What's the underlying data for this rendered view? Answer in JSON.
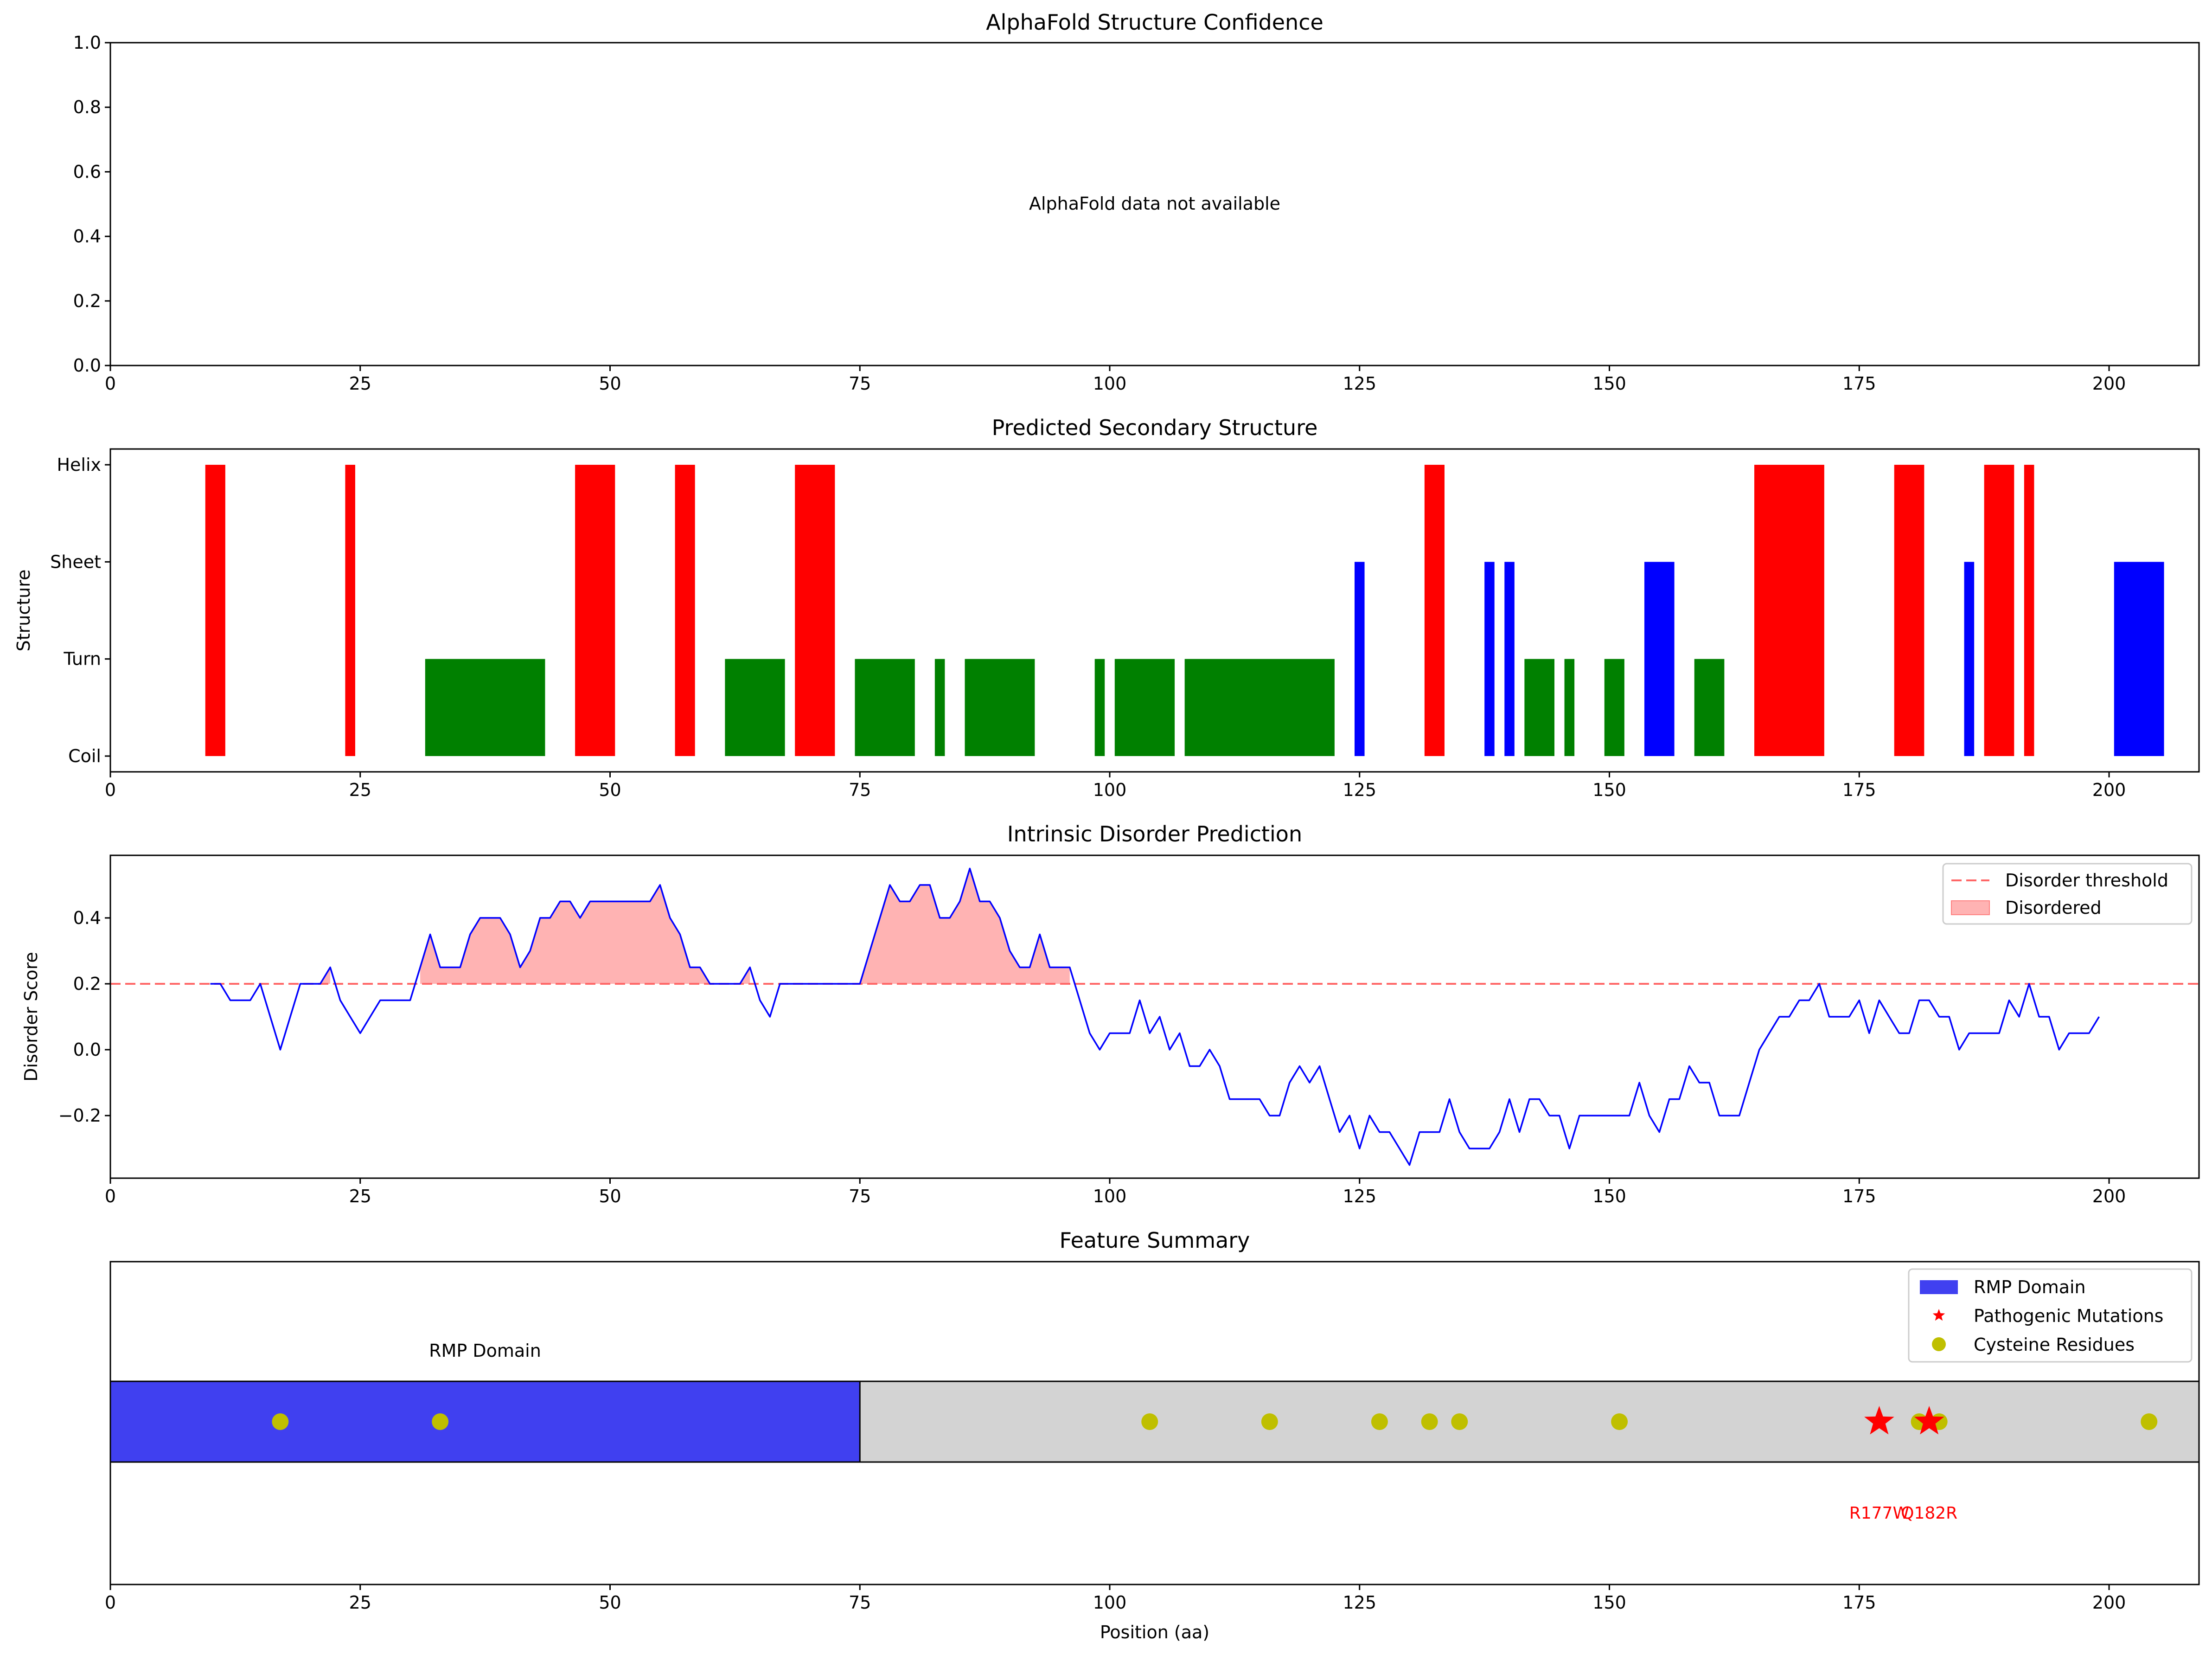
{
  "chart_data": [
    {
      "type": "line",
      "title": "AlphaFold Structure Confidence",
      "xlabel": "",
      "ylabel": "",
      "xlim": [
        0,
        209
      ],
      "ylim": [
        0.0,
        1.0
      ],
      "x_ticks": [
        "0",
        "25",
        "50",
        "75",
        "100",
        "125",
        "150",
        "175",
        "200"
      ],
      "y_ticks": [
        "0.0",
        "0.2",
        "0.4",
        "0.6",
        "0.8",
        "1.0"
      ],
      "message": "AlphaFold data not available",
      "series": []
    },
    {
      "type": "bar",
      "title": "Predicted Secondary Structure",
      "xlabel": "",
      "ylabel": "Structure",
      "xlim": [
        0,
        209
      ],
      "x_ticks": [
        "0",
        "25",
        "50",
        "75",
        "100",
        "125",
        "150",
        "175",
        "200"
      ],
      "levels": [
        "Coil",
        "Turn",
        "Sheet",
        "Helix"
      ],
      "colors": {
        "Helix": "#ff0000",
        "Sheet": "#0000ff",
        "Turn": "#008000"
      },
      "segments": [
        {
          "type": "Helix",
          "start": 9.5,
          "end": 11.5
        },
        {
          "type": "Helix",
          "start": 23.5,
          "end": 24.5
        },
        {
          "type": "Turn",
          "start": 31.5,
          "end": 43.5
        },
        {
          "type": "Helix",
          "start": 46.5,
          "end": 50.5
        },
        {
          "type": "Helix",
          "start": 56.5,
          "end": 58.5
        },
        {
          "type": "Turn",
          "start": 61.5,
          "end": 67.5
        },
        {
          "type": "Helix",
          "start": 68.5,
          "end": 72.5
        },
        {
          "type": "Turn",
          "start": 74.5,
          "end": 80.5
        },
        {
          "type": "Turn",
          "start": 82.5,
          "end": 83.5
        },
        {
          "type": "Turn",
          "start": 85.5,
          "end": 92.5
        },
        {
          "type": "Turn",
          "start": 98.5,
          "end": 99.5
        },
        {
          "type": "Turn",
          "start": 100.5,
          "end": 106.5
        },
        {
          "type": "Turn",
          "start": 107.5,
          "end": 122.5
        },
        {
          "type": "Sheet",
          "start": 124.5,
          "end": 125.5
        },
        {
          "type": "Helix",
          "start": 131.5,
          "end": 133.5
        },
        {
          "type": "Sheet",
          "start": 137.5,
          "end": 138.5
        },
        {
          "type": "Sheet",
          "start": 139.5,
          "end": 140.5
        },
        {
          "type": "Turn",
          "start": 141.5,
          "end": 144.5
        },
        {
          "type": "Turn",
          "start": 145.5,
          "end": 146.5
        },
        {
          "type": "Turn",
          "start": 149.5,
          "end": 151.5
        },
        {
          "type": "Sheet",
          "start": 153.5,
          "end": 156.5
        },
        {
          "type": "Turn",
          "start": 158.5,
          "end": 161.5
        },
        {
          "type": "Helix",
          "start": 164.5,
          "end": 171.5
        },
        {
          "type": "Helix",
          "start": 178.5,
          "end": 181.5
        },
        {
          "type": "Sheet",
          "start": 185.5,
          "end": 186.5
        },
        {
          "type": "Helix",
          "start": 187.5,
          "end": 190.5
        },
        {
          "type": "Helix",
          "start": 191.5,
          "end": 192.5
        },
        {
          "type": "Sheet",
          "start": 200.5,
          "end": 205.5
        }
      ]
    },
    {
      "type": "line",
      "title": "Intrinsic Disorder Prediction",
      "xlabel": "",
      "ylabel": "Disorder Score",
      "xlim": [
        0,
        209
      ],
      "ylim": [
        -0.39,
        0.59
      ],
      "x_ticks": [
        "0",
        "25",
        "50",
        "75",
        "100",
        "125",
        "150",
        "175",
        "200"
      ],
      "y_ticks": [
        "−0.2",
        "0.0",
        "0.2",
        "0.4"
      ],
      "threshold": 0.2,
      "legend": {
        "position": "top-right",
        "entries": [
          "Disorder threshold",
          "Disordered"
        ]
      },
      "line_color": "#0000ff",
      "fill_color": "#ffb3b3",
      "threshold_color": "#ff6666",
      "x_start": 10,
      "values": [
        0.2,
        0.2,
        0.15,
        0.15,
        0.15,
        0.2,
        0.1,
        0.0,
        0.1,
        0.2,
        0.2,
        0.2,
        0.25,
        0.15,
        0.1,
        0.05,
        0.1,
        0.15,
        0.15,
        0.15,
        0.15,
        0.25,
        0.35,
        0.25,
        0.25,
        0.25,
        0.35,
        0.4,
        0.4,
        0.4,
        0.35,
        0.25,
        0.3,
        0.4,
        0.4,
        0.45,
        0.45,
        0.4,
        0.45,
        0.45,
        0.45,
        0.45,
        0.45,
        0.45,
        0.45,
        0.5,
        0.4,
        0.35,
        0.25,
        0.25,
        0.2,
        0.2,
        0.2,
        0.2,
        0.25,
        0.15,
        0.1,
        0.2,
        0.2,
        0.2,
        0.2,
        0.2,
        0.2,
        0.2,
        0.2,
        0.2,
        0.3,
        0.4,
        0.5,
        0.45,
        0.45,
        0.5,
        0.5,
        0.4,
        0.4,
        0.45,
        0.55,
        0.45,
        0.45,
        0.4,
        0.3,
        0.25,
        0.25,
        0.35,
        0.25,
        0.25,
        0.25,
        0.15,
        0.05,
        0.0,
        0.05,
        0.05,
        0.05,
        0.15,
        0.05,
        0.1,
        0.0,
        0.05,
        -0.05,
        -0.05,
        0.0,
        -0.05,
        -0.15,
        -0.15,
        -0.15,
        -0.15,
        -0.2,
        -0.2,
        -0.1,
        -0.05,
        -0.1,
        -0.05,
        -0.15,
        -0.25,
        -0.2,
        -0.3,
        -0.2,
        -0.25,
        -0.25,
        -0.3,
        -0.35,
        -0.25,
        -0.25,
        -0.25,
        -0.15,
        -0.25,
        -0.3,
        -0.3,
        -0.3,
        -0.25,
        -0.15,
        -0.25,
        -0.15,
        -0.15,
        -0.2,
        -0.2,
        -0.3,
        -0.2,
        -0.2,
        -0.2,
        -0.2,
        -0.2,
        -0.2,
        -0.1,
        -0.2,
        -0.25,
        -0.15,
        -0.15,
        -0.05,
        -0.1,
        -0.1,
        -0.2,
        -0.2,
        -0.2,
        -0.1,
        0.0,
        0.05,
        0.1,
        0.1,
        0.15,
        0.15,
        0.2,
        0.1,
        0.1,
        0.1,
        0.15,
        0.05,
        0.15,
        0.1,
        0.05,
        0.05,
        0.15,
        0.15,
        0.1,
        0.1,
        0.0,
        0.05,
        0.05,
        0.05,
        0.05,
        0.15,
        0.1,
        0.2,
        0.1,
        0.1,
        0.0,
        0.05,
        0.05,
        0.05,
        0.1
      ]
    },
    {
      "type": "scatter",
      "title": "Feature Summary",
      "xlabel": "Position (aa)",
      "ylabel": "",
      "xlim": [
        0,
        209
      ],
      "x_ticks": [
        "0",
        "25",
        "50",
        "75",
        "100",
        "125",
        "150",
        "175",
        "200"
      ],
      "legend": {
        "position": "top-right",
        "entries": [
          "RMP Domain",
          "Pathogenic Mutations",
          "Cysteine Residues"
        ]
      },
      "protein_length": 209,
      "domain": {
        "label": "RMP Domain",
        "start": 0,
        "end": 75,
        "color": "#4040f0"
      },
      "backbone_color": "#d3d3d3",
      "mutations": [
        {
          "label": "R177W",
          "position": 177
        },
        {
          "label": "Q182R",
          "position": 182
        }
      ],
      "cysteines": [
        17,
        33,
        104,
        116,
        127,
        132,
        135,
        151,
        181,
        183,
        204
      ],
      "mutation_color": "#ff0000",
      "cysteine_color": "#bfbf00"
    }
  ]
}
